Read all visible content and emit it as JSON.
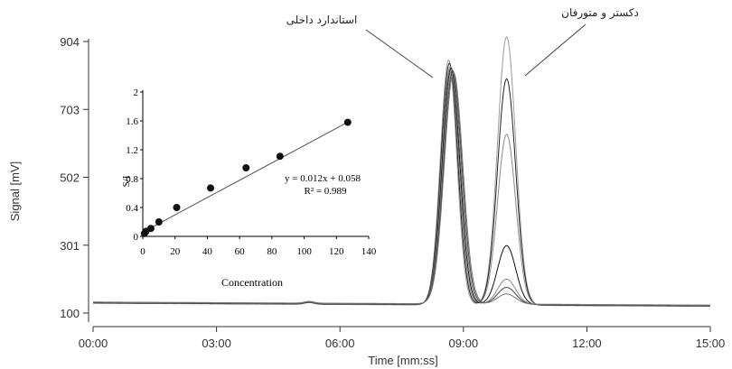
{
  "chart_data": [
    {
      "type": "line",
      "title": "",
      "xlabel": "Time [mm:ss]",
      "ylabel": "Signal [mV]",
      "x_ticks": [
        "00:00",
        "03:00",
        "06:00",
        "09:00",
        "12:00",
        "15:00"
      ],
      "x_tick_values_min": [
        0,
        3,
        6,
        9,
        12,
        15
      ],
      "y_ticks": [
        "100",
        "301",
        "502",
        "703",
        "904"
      ],
      "y_tick_values": [
        100,
        301,
        502,
        703,
        904
      ],
      "xlim_min": [
        0,
        15
      ],
      "ylim": [
        100,
        904
      ],
      "baseline": 130,
      "annotations": [
        {
          "text": "استاندارد داخلی",
          "target_peak": "internal-standard"
        },
        {
          "text": "دکستر و متورفان",
          "target_peak": "dextromethorphan"
        }
      ],
      "series": [
        {
          "is_peak": "internal-standard",
          "retention_min": 8.7,
          "heights": [
            855,
            845,
            835,
            830,
            825,
            820,
            815
          ]
        },
        {
          "is_peak": "dextromethorphan",
          "retention_min": 10.05,
          "heights": [
            925,
            800,
            635,
            305,
            205,
            180,
            160
          ]
        }
      ],
      "grid": false,
      "legend": "none"
    },
    {
      "type": "scatter",
      "title": "",
      "xlabel": "Concentration",
      "ylabel": "S/I",
      "x_ticks": [
        "0",
        "20",
        "40",
        "60",
        "80",
        "100",
        "120",
        "140"
      ],
      "y_ticks": [
        "0",
        "0.4",
        "0.8",
        "1.2",
        "1.6",
        "2"
      ],
      "xlim": [
        0,
        140
      ],
      "ylim": [
        0,
        2
      ],
      "points": [
        {
          "x": 1,
          "y": 0.04
        },
        {
          "x": 2,
          "y": 0.07
        },
        {
          "x": 5,
          "y": 0.11
        },
        {
          "x": 10,
          "y": 0.2
        },
        {
          "x": 21,
          "y": 0.4
        },
        {
          "x": 42,
          "y": 0.67
        },
        {
          "x": 64,
          "y": 0.95
        },
        {
          "x": 85,
          "y": 1.11
        },
        {
          "x": 127,
          "y": 1.58
        }
      ],
      "fit": {
        "slope": 0.012,
        "intercept": 0.058
      },
      "equation": "y = 0.012x + 0.058",
      "r2": "R² = 0.989"
    }
  ]
}
